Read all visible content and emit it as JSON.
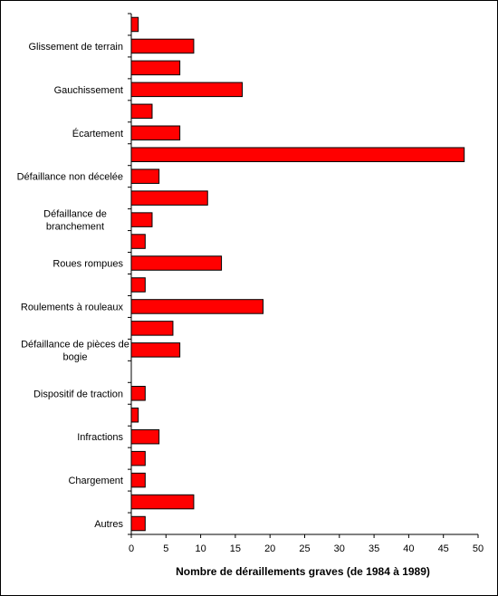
{
  "chart_data": {
    "type": "bar",
    "orientation": "horizontal",
    "title": "",
    "xlabel": "Nombre de déraillements graves (de 1984 à 1989)",
    "ylabel": "",
    "xlim": [
      0,
      50
    ],
    "xticks": [
      0,
      5,
      10,
      15,
      20,
      25,
      30,
      35,
      40,
      45,
      50
    ],
    "grid": false,
    "legend": "none",
    "bar_color": "#ff0000",
    "bar_edge_color": "#000000",
    "labeled_categories": [
      {
        "label_lines": [
          "Glissement de terrain"
        ],
        "row": 1
      },
      {
        "label_lines": [
          "Gauchissement"
        ],
        "row": 3
      },
      {
        "label_lines": [
          "Écartement"
        ],
        "row": 5
      },
      {
        "label_lines": [
          "Défaillance non décelée"
        ],
        "row": 7
      },
      {
        "label_lines": [
          "Défaillance de",
          "branchement"
        ],
        "row": 9
      },
      {
        "label_lines": [
          "Roues rompues"
        ],
        "row": 11
      },
      {
        "label_lines": [
          "Roulements à rouleaux"
        ],
        "row": 13
      },
      {
        "label_lines": [
          "Défaillance de pièces de",
          "bogie"
        ],
        "row": 15
      },
      {
        "label_lines": [
          "Dispositif de traction"
        ],
        "row": 17
      },
      {
        "label_lines": [
          "Infractions"
        ],
        "row": 19
      },
      {
        "label_lines": [
          "Chargement"
        ],
        "row": 21
      },
      {
        "label_lines": [
          "Autres"
        ],
        "row": 23
      }
    ],
    "values": [
      1,
      9,
      7,
      16,
      3,
      7,
      48,
      4,
      11,
      3,
      2,
      13,
      2,
      19,
      6,
      7,
      0,
      2,
      1,
      4,
      2,
      2,
      9,
      2
    ]
  }
}
